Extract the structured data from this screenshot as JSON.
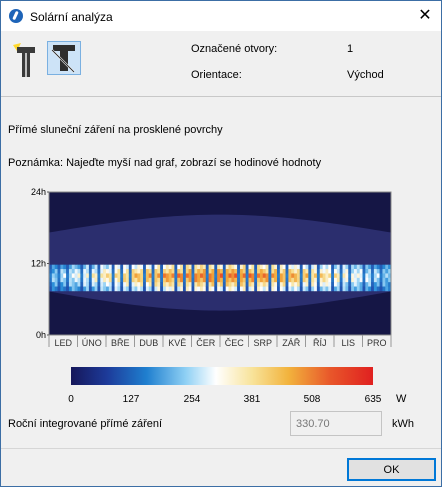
{
  "window": {
    "title": "Solární analýza"
  },
  "info": {
    "selected_label": "Označené otvory:",
    "selected_value": "1",
    "orientation_label": "Orientace:",
    "orientation_value": "Východ"
  },
  "section": {
    "heading": "Přímé sluneční záření na prosklené povrchy",
    "note": "Poznámka: Najeďte myší nad graf, zobrazí se hodinové hodnoty"
  },
  "chart_data": {
    "type": "heatmap",
    "y_ticks": [
      "24h",
      "12h",
      "0h"
    ],
    "ylim": [
      0,
      24
    ],
    "x_categories": [
      "LED",
      "ÚNO",
      "BŘE",
      "DUB",
      "KVĚ",
      "ČER",
      "ČEC",
      "SRP",
      "ZÁŘ",
      "ŘÍJ",
      "LIS",
      "PRO"
    ],
    "color_scale": {
      "ticks": [
        0,
        127,
        254,
        381,
        508,
        635
      ],
      "unit": "W",
      "colors": [
        "#16175a",
        "#1f7fcf",
        "#ffffff",
        "#f2b33d",
        "#e02020"
      ]
    }
  },
  "annual": {
    "label": "Roční integrované přímé záření",
    "value": "330.70",
    "unit": "kWh"
  },
  "buttons": {
    "ok": "OK"
  },
  "icons": {
    "app": "solar-analysis-app-icon",
    "close": "close-icon",
    "tool1": "sun-window-icon",
    "tool2": "window-section-icon"
  }
}
